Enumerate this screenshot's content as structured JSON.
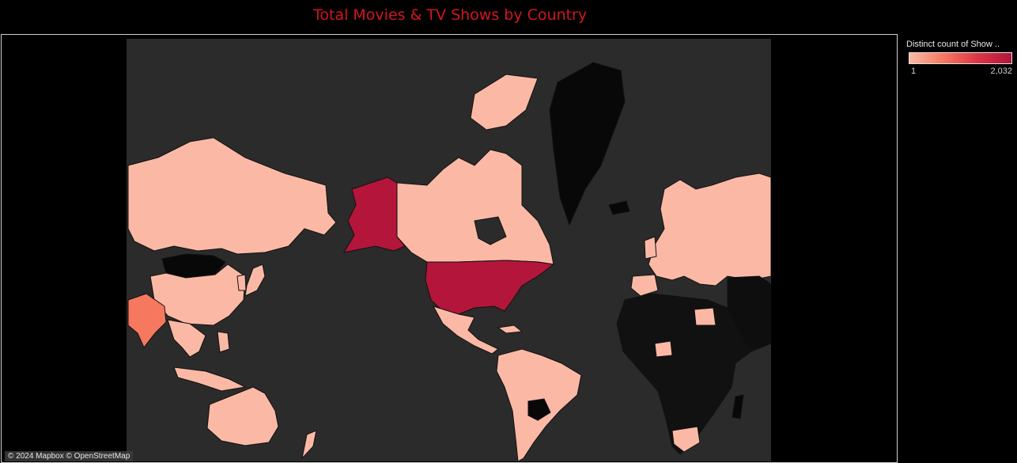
{
  "title": "Total Movies & TV Shows by Country",
  "legend": {
    "title": "Distinct count of Show ..",
    "min_label": "1",
    "max_label": "2,032",
    "min_value": 1,
    "max_value": 2032,
    "color_low": "#fbb9a5",
    "color_high": "#b3163a"
  },
  "map": {
    "ocean_color": "#2b2b2b",
    "no_data_color": "#080808",
    "attribution": "© 2024 Mapbox © OpenStreetMap",
    "regions": [
      {
        "name": "United States",
        "level": "high",
        "color": "#b3163a"
      },
      {
        "name": "Alaska (US)",
        "level": "high",
        "color": "#b3163a"
      },
      {
        "name": "India",
        "level": "medium",
        "color": "#f6785f"
      },
      {
        "name": "Canada",
        "level": "low",
        "color": "#fbb9a5"
      },
      {
        "name": "Russia",
        "level": "low",
        "color": "#fbb9a5"
      },
      {
        "name": "China",
        "level": "low",
        "color": "#fbb9a5"
      },
      {
        "name": "Australia",
        "level": "low",
        "color": "#fbb9a5"
      },
      {
        "name": "Brazil",
        "level": "low",
        "color": "#fbb9a5"
      },
      {
        "name": "Europe",
        "level": "low",
        "color": "#fbb9a5"
      },
      {
        "name": "Greenland",
        "level": "none",
        "color": "#080808"
      },
      {
        "name": "Mongolia",
        "level": "none",
        "color": "#080808"
      },
      {
        "name": "Africa (most)",
        "level": "none",
        "color": "#111111"
      }
    ]
  }
}
